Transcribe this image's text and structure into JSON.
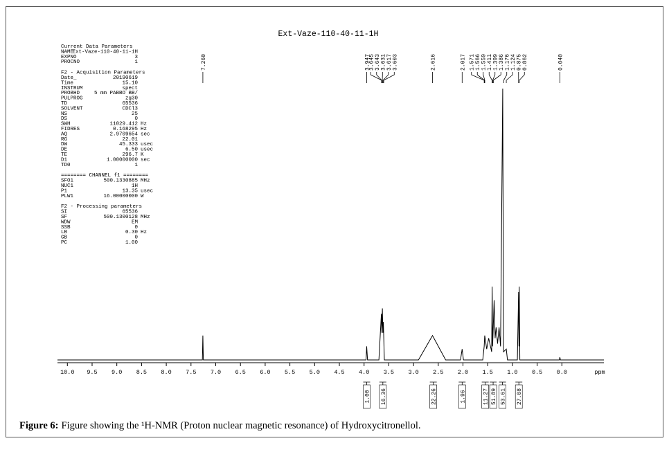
{
  "chart_data": {
    "type": "spectrum",
    "title": "Ext-Vaze-110-40-11-1H",
    "x_label": "ppm",
    "color": "#000000",
    "xlim": [
      10.2,
      -0.85
    ],
    "ylim": [
      0,
      100
    ],
    "xticks": [
      {
        "value": 10,
        "label": "10.0"
      },
      9.5,
      {
        "value": 9,
        "label": "9.0"
      },
      8.5,
      {
        "value": 8,
        "label": "8.0"
      },
      7.5,
      {
        "value": 7,
        "label": "7.0"
      },
      6.5,
      {
        "value": 6,
        "label": "6.0"
      },
      5.5,
      {
        "value": 5,
        "label": "5.0"
      },
      4.5,
      {
        "value": 4,
        "label": "4.0"
      },
      3.5,
      {
        "value": 3,
        "label": "3.0"
      },
      2.5,
      {
        "value": 2,
        "label": "2.0"
      },
      1.5,
      {
        "value": 1,
        "label": "1.0"
      },
      0.5,
      {
        "value": 0,
        "label": "0.0"
      }
    ],
    "x": [
      10.2,
      7.27,
      7.26,
      7.25,
      3.96,
      3.947,
      3.93,
      3.7,
      3.65,
      3.64,
      3.63,
      3.62,
      3.61,
      3.59,
      2.9,
      2.616,
      2.35,
      2.05,
      2.017,
      1.99,
      1.6,
      1.571,
      1.56,
      1.52,
      1.48,
      1.42,
      1.41,
      1.4,
      1.37,
      1.35,
      1.33,
      1.3,
      1.27,
      1.24,
      1.196,
      1.18,
      1.124,
      1.1,
      0.9,
      0.875,
      0.868,
      0.862,
      0.85,
      0.05,
      0.04,
      0.03,
      -0.85
    ],
    "values": [
      0,
      0,
      9,
      0,
      0,
      5,
      0,
      0,
      17,
      10,
      19,
      10,
      14,
      0,
      0,
      9,
      0,
      0,
      4,
      0,
      0,
      5,
      9,
      4,
      8,
      3,
      27,
      5,
      22,
      8,
      12,
      6,
      12,
      5,
      100,
      3,
      4,
      0,
      0,
      25,
      5,
      27,
      0,
      0,
      1,
      0,
      0
    ],
    "peak_labels": [
      {
        "value": 7.26,
        "label": "7.260"
      },
      {
        "value": 3.947,
        "label": "3.947"
      },
      {
        "value": 3.645,
        "label": "3.645"
      },
      {
        "value": 3.643,
        "label": "3.643"
      },
      {
        "value": 3.631,
        "label": "3.631"
      },
      {
        "value": 3.617,
        "label": "3.617"
      },
      {
        "value": 3.603,
        "label": "3.603"
      },
      {
        "value": 2.616,
        "label": "2.616"
      },
      {
        "value": 2.017,
        "label": "2.017"
      },
      {
        "value": 1.571,
        "label": "1.571"
      },
      {
        "value": 1.566,
        "label": "1.566"
      },
      {
        "value": 1.559,
        "label": "1.559"
      },
      {
        "value": 1.411,
        "label": "1.411"
      },
      {
        "value": 1.399,
        "label": "1.399"
      },
      {
        "value": 1.386,
        "label": "1.386"
      },
      {
        "value": 1.176,
        "label": "1.176"
      },
      {
        "value": 1.124,
        "label": "1.124"
      },
      {
        "value": 0.875,
        "label": "0.875"
      },
      {
        "value": 0.862,
        "label": "0.862"
      },
      {
        "value": 0.04,
        "label": "0.040"
      }
    ],
    "integrals": [
      {
        "ppm": 3.947,
        "value": 1,
        "label": "1.00"
      },
      {
        "ppm": 3.62,
        "value": 16.36,
        "label": "16.36"
      },
      {
        "ppm": 2.6,
        "value": 22.26,
        "label": "22.26"
      },
      {
        "ppm": 2.017,
        "value": 1.96,
        "label": "1.96"
      },
      {
        "ppm": 1.55,
        "value": 11.27,
        "label": "11.27"
      },
      {
        "ppm": 1.39,
        "value": 51.89,
        "label": "51.89"
      },
      {
        "ppm": 1.2,
        "value": 53.61,
        "label": "53.61"
      },
      {
        "ppm": 0.87,
        "value": 27.08,
        "label": "27.08"
      }
    ],
    "parameters": [
      [
        "Current Data Parameters"
      ],
      [
        "NAME",
        "Ext-Vaze-110-40-11-1H"
      ],
      [
        "EXPNO",
        "3"
      ],
      [
        "PROCNO",
        "1"
      ],
      [
        "F2 - Acquisition Parameters"
      ],
      [
        "Date_",
        "20190619"
      ],
      [
        "Time",
        "15.10"
      ],
      [
        "INSTRUM",
        "spect"
      ],
      [
        "PROBHD",
        "5 mm PABBO BB/"
      ],
      [
        "PULPROG",
        "zg30"
      ],
      [
        "TD",
        "65536"
      ],
      [
        "SOLVENT",
        "CDCl3"
      ],
      [
        "NS",
        "25"
      ],
      [
        "DS",
        "0"
      ],
      [
        "SWH",
        "11029.412",
        "Hz"
      ],
      [
        "FIDRES",
        "0.168295",
        "Hz"
      ],
      [
        "AQ",
        "2.9709654",
        "sec"
      ],
      [
        "RG",
        "22.01"
      ],
      [
        "DW",
        "45.333",
        "usec"
      ],
      [
        "DE",
        "6.50",
        "usec"
      ],
      [
        "TE",
        "296.7",
        "K"
      ],
      [
        "D1",
        "1.00000000",
        "sec"
      ],
      [
        "TD0",
        "1"
      ],
      [
        "======== CHANNEL f1 ========"
      ],
      [
        "SFO1",
        "500.1330885",
        "MHz"
      ],
      [
        "NUC1",
        "1H"
      ],
      [
        "P1",
        "13.35",
        "usec"
      ],
      [
        "PLW1",
        "16.00000000",
        "W"
      ],
      [
        "F2 - Processing parameters"
      ],
      [
        "SI",
        "65536"
      ],
      [
        "SF",
        "500.1300128",
        "MHz"
      ],
      [
        "WDW",
        "EM"
      ],
      [
        "SSB",
        "0"
      ],
      [
        "LB",
        "0.30",
        "Hz"
      ],
      [
        "GB",
        "0"
      ],
      [
        "PC",
        "1.00"
      ]
    ],
    "caption_label": "Figure 6:",
    "caption": "Figure showing the ¹H-NMR (Proton nuclear magnetic resonance) of Hydroxycitronellol."
  }
}
